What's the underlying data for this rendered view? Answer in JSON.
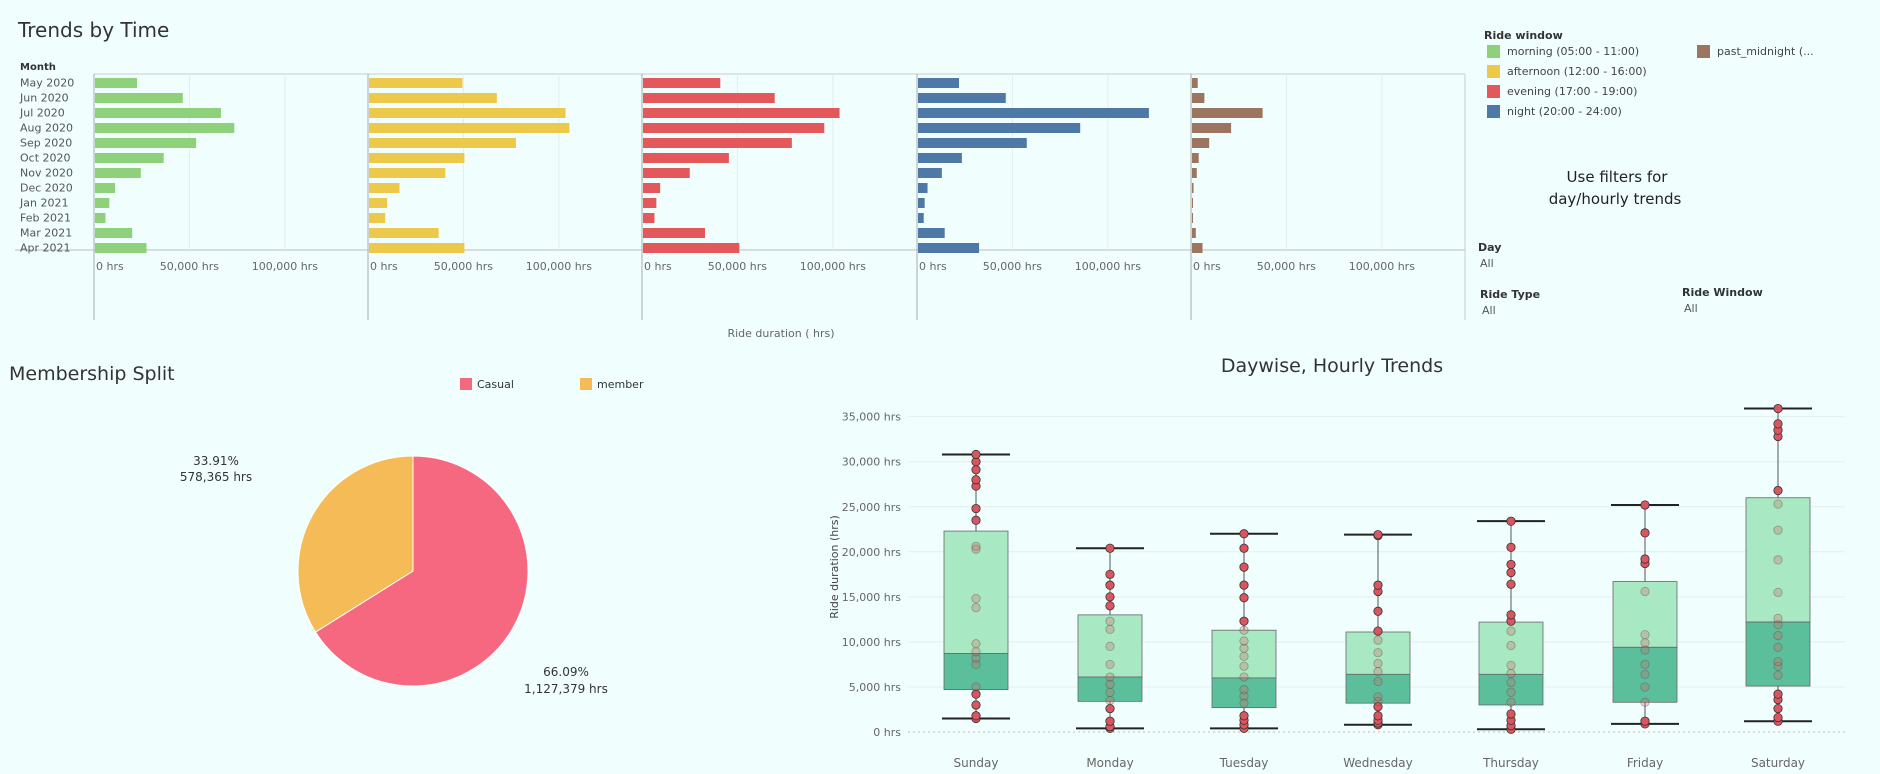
{
  "trends": {
    "title": "Trends by Time",
    "month_header": "Month",
    "x_axis_title": "Ride duration ( hrs)"
  },
  "legend": {
    "title": "Ride window",
    "items": [
      {
        "label": "morning (05:00 - 11:00)",
        "color": "#8fd17a"
      },
      {
        "label": "afternoon (12:00 - 16:00)",
        "color": "#ecc94b"
      },
      {
        "label": "evening (17:00 - 19:00)",
        "color": "#e2585b"
      },
      {
        "label": "night (20:00 - 24:00)",
        "color": "#4e79a7"
      },
      {
        "label": "past_midnight (...",
        "color": "#9c7561"
      }
    ]
  },
  "note": {
    "line1": "Use  filters for",
    "line2": " day/hourly trends"
  },
  "filters": {
    "day_label": "Day",
    "day_value": "All",
    "ride_type_label": "Ride Type",
    "ride_type_value": "All",
    "ride_window_label": "Ride Window",
    "ride_window_value": "All"
  },
  "membership": {
    "title": "Membership Split",
    "legend": [
      {
        "label": "Casual",
        "color": "#f5687f"
      },
      {
        "label": "member",
        "color": "#f5bb57"
      }
    ],
    "member_pct": "33.91%",
    "member_hrs": "578,365 hrs",
    "casual_pct": "66.09%",
    "casual_hrs": "1,127,379 hrs"
  },
  "daywise": {
    "title": "Daywise, Hourly Trends",
    "y_axis_title": "Ride duration  (hrs)"
  },
  "chart_data": [
    {
      "type": "bar",
      "title": "Trends by Time",
      "orientation": "horizontal",
      "categories": [
        "May  2020",
        "Jun  2020",
        "Jul  2020",
        "Aug  2020",
        "Sep  2020",
        "Oct  2020",
        "Nov  2020",
        "Dec  2020",
        "Jan  2021",
        "Feb  2021",
        "Mar  2021",
        "Apr  2021"
      ],
      "xlabel": "Ride duration ( hrs)",
      "xlim": [
        0,
        120000
      ],
      "tick_labels": [
        "0 hrs",
        "50,000 hrs",
        "100,000 hrs"
      ],
      "tick_values": [
        0,
        50000,
        100000
      ],
      "series": [
        {
          "name": "morning (05:00 - 11:00)",
          "color": "#8fd17a",
          "values": [
            22000,
            46000,
            66000,
            73000,
            53000,
            36000,
            24000,
            10500,
            7500,
            5500,
            19500,
            27000
          ]
        },
        {
          "name": "afternoon (12:00 - 16:00)",
          "color": "#ecc94b",
          "values": [
            49000,
            67000,
            103000,
            105000,
            77000,
            50000,
            40000,
            16000,
            9500,
            8500,
            36500,
            50000
          ]
        },
        {
          "name": "evening (17:00 - 19:00)",
          "color": "#e2585b",
          "values": [
            40500,
            69000,
            103000,
            95000,
            78000,
            45000,
            24500,
            9000,
            7000,
            6000,
            32500,
            50500
          ]
        },
        {
          "name": "night (20:00 - 24:00)",
          "color": "#4e79a7",
          "values": [
            21500,
            46000,
            121000,
            85000,
            57000,
            23000,
            12500,
            5000,
            3500,
            3000,
            14000,
            32000
          ]
        },
        {
          "name": "past_midnight (...",
          "color": "#9c7561",
          "values": [
            3000,
            6500,
            37000,
            20500,
            9000,
            3500,
            2500,
            800,
            500,
            400,
            2000,
            5500
          ]
        }
      ]
    },
    {
      "type": "pie",
      "title": "Membership Split",
      "slices": [
        {
          "label": "Casual",
          "value": 1127379,
          "percent": 66.09,
          "color": "#f5687f"
        },
        {
          "label": "member",
          "value": 578365,
          "percent": 33.91,
          "color": "#f5bb57"
        }
      ]
    },
    {
      "type": "boxplot",
      "title": "Daywise, Hourly Trends",
      "ylabel": "Ride duration  (hrs)",
      "ylim": [
        0,
        36000
      ],
      "y_ticks": [
        0,
        5000,
        10000,
        15000,
        20000,
        25000,
        30000,
        35000
      ],
      "y_tick_labels": [
        "0 hrs",
        "5,000 hrs",
        "10,000 hrs",
        "15,000 hrs",
        "20,000 hrs",
        "25,000 hrs",
        "30,000 hrs",
        "35,000 hrs"
      ],
      "categories": [
        "Sunday",
        "Monday",
        "Tuesday",
        "Wednesday",
        "Thursday",
        "Friday",
        "Saturday"
      ],
      "boxes": [
        {
          "min": 1500,
          "q1": 4700,
          "median": 8700,
          "q3": 22300,
          "max": 30800,
          "points": [
            1500,
            1800,
            3000,
            4200,
            5000,
            7500,
            8200,
            8900,
            9800,
            13800,
            14800,
            20300,
            20600,
            23500,
            24800,
            27300,
            28000,
            29100,
            30000,
            30800
          ]
        },
        {
          "min": 400,
          "q1": 3400,
          "median": 6100,
          "q3": 13000,
          "max": 20400,
          "points": [
            400,
            600,
            1200,
            2600,
            3500,
            4400,
            5300,
            6100,
            7500,
            9500,
            11400,
            12300,
            14000,
            15000,
            16300,
            17500,
            20400
          ]
        },
        {
          "min": 400,
          "q1": 2700,
          "median": 6000,
          "q3": 11300,
          "max": 22000,
          "points": [
            400,
            800,
            1300,
            1800,
            3200,
            4000,
            4700,
            6100,
            7300,
            8400,
            9300,
            10100,
            11300,
            12300,
            14900,
            16300,
            18300,
            20400,
            22000
          ]
        },
        {
          "min": 800,
          "q1": 3200,
          "median": 6400,
          "q3": 11100,
          "max": 21900,
          "points": [
            800,
            1000,
            1300,
            1800,
            2800,
            3400,
            3900,
            5600,
            6700,
            7600,
            8800,
            10200,
            11200,
            13400,
            15600,
            16300,
            21800,
            21900
          ]
        },
        {
          "min": 300,
          "q1": 3000,
          "median": 6400,
          "q3": 12200,
          "max": 23400,
          "points": [
            300,
            700,
            1300,
            2000,
            3300,
            4400,
            5500,
            6500,
            7400,
            9600,
            11200,
            12300,
            13000,
            16400,
            17700,
            18600,
            20500,
            23400
          ]
        },
        {
          "min": 900,
          "q1": 3300,
          "median": 9400,
          "q3": 16700,
          "max": 25200,
          "points": [
            900,
            1200,
            3300,
            5000,
            6400,
            7500,
            9100,
            9900,
            10800,
            15600,
            18700,
            19200,
            22100,
            25200
          ]
        },
        {
          "min": 1200,
          "q1": 5100,
          "median": 12200,
          "q3": 26000,
          "max": 35900,
          "points": [
            1200,
            1600,
            2600,
            3600,
            4200,
            6300,
            7300,
            7800,
            9400,
            10700,
            11900,
            12600,
            15500,
            19100,
            22400,
            25300,
            26800,
            32800,
            33500,
            34200,
            35900
          ]
        }
      ]
    }
  ]
}
